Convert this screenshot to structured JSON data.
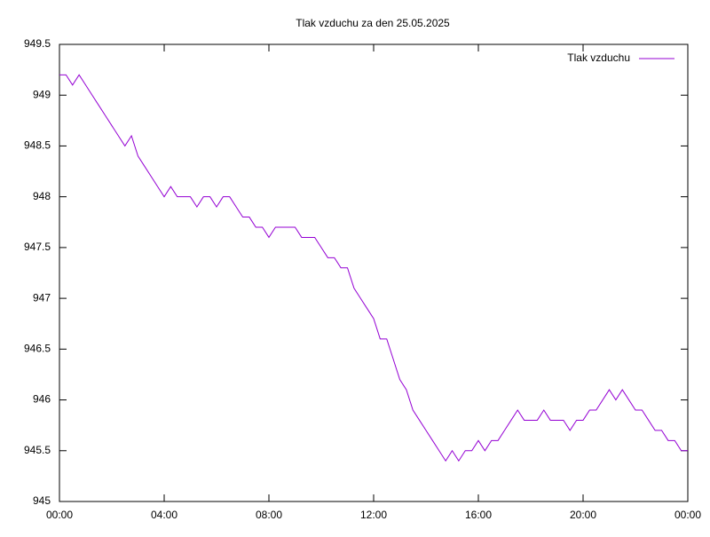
{
  "chart_data": {
    "type": "line",
    "title": "Tlak vzduchu za den 25.05.2025",
    "x": [
      0,
      0.25,
      0.5,
      0.75,
      1,
      1.25,
      1.5,
      1.75,
      2,
      2.25,
      2.5,
      2.75,
      3,
      3.25,
      3.5,
      3.75,
      4,
      4.25,
      4.5,
      4.75,
      5,
      5.25,
      5.5,
      5.75,
      6,
      6.25,
      6.5,
      6.75,
      7,
      7.25,
      7.5,
      7.75,
      8,
      8.25,
      8.5,
      8.75,
      9,
      9.25,
      9.5,
      9.75,
      10,
      10.25,
      10.5,
      10.75,
      11,
      11.25,
      11.5,
      11.75,
      12,
      12.25,
      12.5,
      12.75,
      13,
      13.25,
      13.5,
      13.75,
      14,
      14.25,
      14.5,
      14.75,
      15,
      15.25,
      15.5,
      15.75,
      16,
      16.25,
      16.5,
      16.75,
      17,
      17.25,
      17.5,
      17.75,
      18,
      18.25,
      18.5,
      18.75,
      19,
      19.25,
      19.5,
      19.75,
      20,
      20.25,
      20.5,
      20.75,
      21,
      21.25,
      21.5,
      21.75,
      22,
      22.25,
      22.5,
      22.75,
      23,
      23.25,
      23.5,
      23.75,
      24
    ],
    "series": [
      {
        "name": "Tlak vzduchu",
        "color": "#9400d3",
        "values": [
          949.2,
          949.2,
          949.1,
          949.2,
          949.1,
          949.0,
          948.9,
          948.8,
          948.7,
          948.6,
          948.5,
          948.6,
          948.4,
          948.3,
          948.2,
          948.1,
          948.0,
          948.1,
          948.0,
          948.0,
          948.0,
          947.9,
          948.0,
          948.0,
          947.9,
          948.0,
          948.0,
          947.9,
          947.8,
          947.8,
          947.7,
          947.7,
          947.6,
          947.7,
          947.7,
          947.7,
          947.7,
          947.6,
          947.6,
          947.6,
          947.5,
          947.4,
          947.4,
          947.3,
          947.3,
          947.1,
          947.0,
          946.9,
          946.8,
          946.6,
          946.6,
          946.4,
          946.2,
          946.1,
          945.9,
          945.8,
          945.7,
          945.6,
          945.5,
          945.4,
          945.5,
          945.4,
          945.5,
          945.5,
          945.6,
          945.5,
          945.6,
          945.6,
          945.7,
          945.8,
          945.9,
          945.8,
          945.8,
          945.8,
          945.9,
          945.8,
          945.8,
          945.8,
          945.7,
          945.8,
          945.8,
          945.9,
          945.9,
          946.0,
          946.1,
          946.0,
          946.1,
          946.0,
          945.9,
          945.9,
          945.8,
          945.7,
          945.7,
          945.6,
          945.6,
          945.5,
          945.5
        ]
      }
    ],
    "xlim": [
      0,
      24
    ],
    "xticks": [
      {
        "value": 0,
        "label": "00:00"
      },
      {
        "value": 4,
        "label": "04:00"
      },
      {
        "value": 8,
        "label": "08:00"
      },
      {
        "value": 12,
        "label": "12:00"
      },
      {
        "value": 16,
        "label": "16:00"
      },
      {
        "value": 20,
        "label": "20:00"
      },
      {
        "value": 24,
        "label": "00:00"
      }
    ],
    "ylim": [
      945,
      949.5
    ],
    "yticks": [
      945,
      945.5,
      946,
      946.5,
      947,
      947.5,
      948,
      948.5,
      949,
      949.5
    ],
    "grid": false,
    "legend": "top-right"
  }
}
